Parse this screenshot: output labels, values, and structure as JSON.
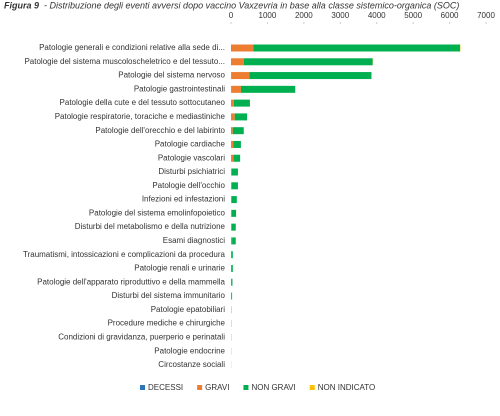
{
  "chart_data": {
    "type": "stacked-barh",
    "figure_label": "Figura 9",
    "title": "- Distribuzione degli eventi avversi dopo vaccino Vaxzevria in base alla classe sistemico-organica (SOC)",
    "categories": [
      "Patologie generali e condizioni relative alla sede di...",
      "Patologie del sistema muscoloscheletrico e del tessuto...",
      "Patologie del sistema nervoso",
      "Patologie gastrointestinali",
      "Patologie della cute e del tessuto sottocutaneo",
      "Patologie respiratorie, toraciche e mediastiniche",
      "Patologie dell'orecchio e del labirinto",
      "Patologie cardiache",
      "Patologie vascolari",
      "Disturbi psichiatrici",
      "Patologie dell'occhio",
      "Infezioni ed infestazioni",
      "Patologie del sistema emolinfopoietico",
      "Disturbi del metabolismo e della nutrizione",
      "Esami diagnostici",
      "Traumatismi, intossicazioni e complicazioni da procedura",
      "Patologie renali e urinarie",
      "Patologie dell'apparato riproduttivo e della mammella",
      "Disturbi del sistema immunitario",
      "Patologie epatobiliari",
      "Procedure mediche e chirurgiche",
      "Condizioni di gravidanza, puerperio e perinatali",
      "Patologie endocrine",
      "Circostanze sociali"
    ],
    "series": [
      {
        "name": "DECESSI",
        "color": "#2e75b6",
        "values": [
          10,
          0,
          5,
          3,
          0,
          2,
          0,
          2,
          1,
          0,
          0,
          0,
          0,
          0,
          0,
          0,
          0,
          0,
          0,
          0,
          0,
          0,
          0,
          0
        ]
      },
      {
        "name": "GRAVI",
        "color": "#ed7d31",
        "values": [
          600,
          350,
          500,
          270,
          80,
          100,
          50,
          60,
          70,
          20,
          20,
          20,
          20,
          20,
          30,
          10,
          10,
          5,
          10,
          3,
          2,
          1,
          1,
          0
        ]
      },
      {
        "name": "NON GRAVI",
        "color": "#00b050",
        "values": [
          5680,
          3540,
          3350,
          1490,
          440,
          340,
          300,
          210,
          180,
          170,
          170,
          140,
          120,
          110,
          100,
          40,
          40,
          35,
          20,
          7,
          6,
          5,
          4,
          3
        ]
      },
      {
        "name": "NON INDICATO",
        "color": "#ffc000",
        "values": [
          10,
          5,
          5,
          3,
          2,
          1,
          1,
          0,
          0,
          0,
          0,
          0,
          0,
          0,
          0,
          0,
          0,
          0,
          0,
          0,
          0,
          0,
          0,
          0
        ]
      }
    ],
    "xlim": [
      0,
      7000
    ],
    "xticks": [
      0,
      1000,
      2000,
      3000,
      4000,
      5000,
      6000,
      7000
    ]
  }
}
